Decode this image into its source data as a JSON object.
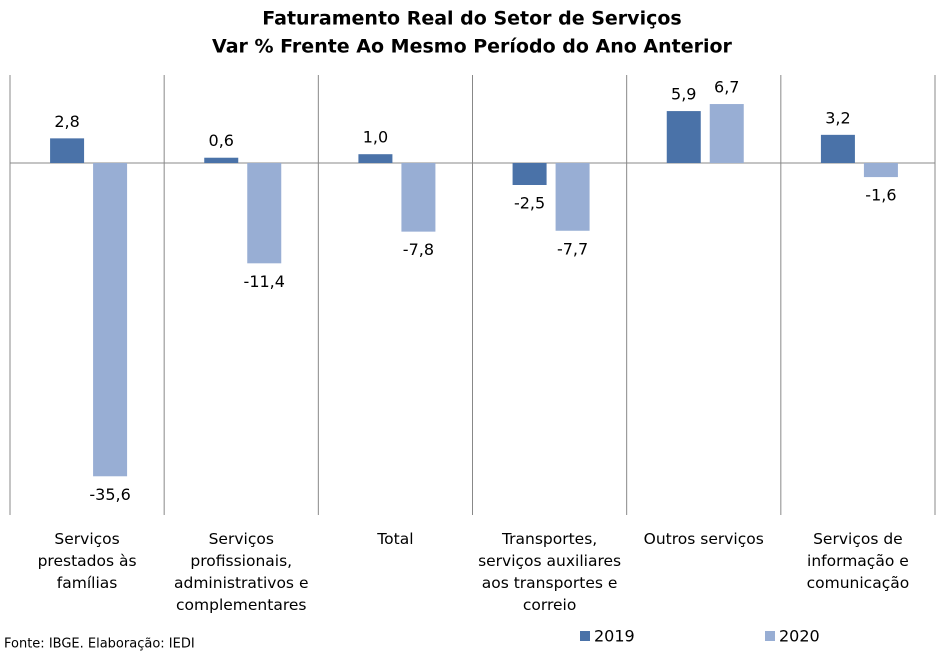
{
  "chart_data": {
    "type": "bar",
    "title": "Faturamento Real do Setor de Serviços",
    "subtitle": "Var % Frente Ao Mesmo Período do Ano Anterior",
    "categories": [
      "Serviços prestados às famílias",
      "Serviços profissionais, administrativos e complementares",
      "Total",
      "Transportes, serviços auxiliares aos transportes e correio",
      "Outros serviços",
      "Serviços de informação e comunicação"
    ],
    "series": [
      {
        "name": "2019",
        "color": "#4a72a8",
        "values": [
          2.8,
          0.6,
          1.0,
          -2.5,
          5.9,
          3.2
        ],
        "value_labels": [
          "2,8",
          "0,6",
          "1,0",
          "-2,5",
          "5,9",
          "3,2"
        ]
      },
      {
        "name": "2020",
        "color": "#98aed4",
        "values": [
          -35.6,
          -11.4,
          -7.8,
          -7.7,
          6.7,
          -1.6
        ],
        "value_labels": [
          "-35,6",
          "-11,4",
          "-7,8",
          "-7,7",
          "6,7",
          "-1,6"
        ]
      }
    ],
    "ylim": [
      -40,
      10
    ],
    "legend": "bottom",
    "source": "Fonte: IBGE. Elaboração: IEDI"
  }
}
